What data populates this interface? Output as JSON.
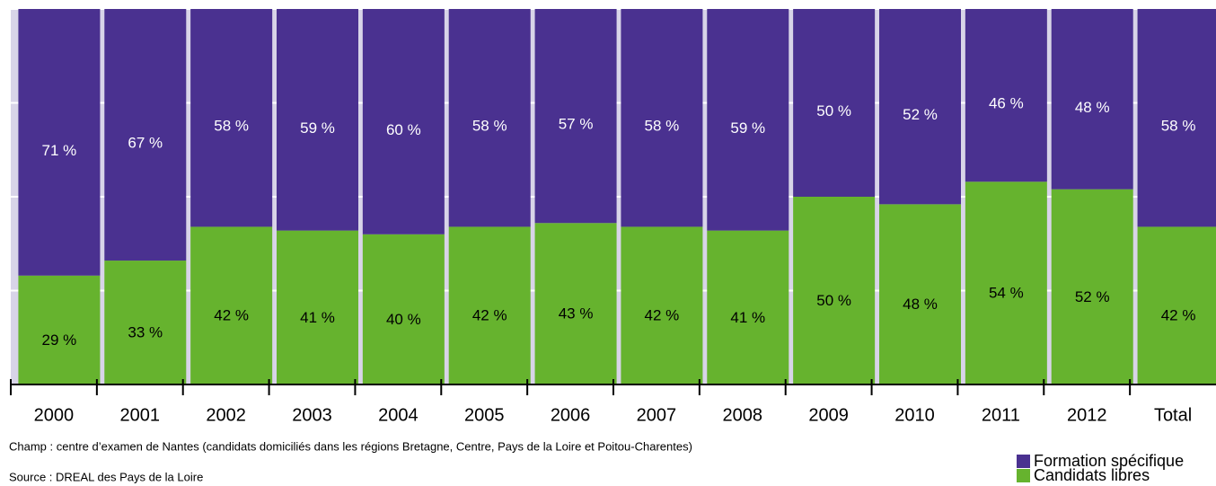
{
  "chart_data": {
    "type": "stacked-bar",
    "categories": [
      "2000",
      "2001",
      "2002",
      "2003",
      "2004",
      "2005",
      "2006",
      "2007",
      "2008",
      "2009",
      "2010",
      "2011",
      "2012",
      "Total"
    ],
    "series": [
      {
        "name": "Formation spécifique",
        "color": "#4a3190",
        "values": [
          71,
          67,
          58,
          59,
          60,
          58,
          57,
          58,
          59,
          50,
          52,
          46,
          48,
          58
        ],
        "value_labels": [
          "71 %",
          "67 %",
          "58 %",
          "59 %",
          "60 %",
          "58 %",
          "57 %",
          "58 %",
          "59 %",
          "50 %",
          "52 %",
          "46 %",
          "48 %",
          "58 %"
        ]
      },
      {
        "name": "Candidats libres",
        "color": "#66b32e",
        "values": [
          29,
          33,
          42,
          41,
          40,
          42,
          43,
          42,
          41,
          50,
          48,
          54,
          52,
          42
        ],
        "value_labels": [
          "29 %",
          "33 %",
          "42 %",
          "41 %",
          "40 %",
          "42 %",
          "43 %",
          "42 %",
          "41 %",
          "50 %",
          "48 %",
          "54 %",
          "52 %",
          "42 %"
        ]
      }
    ],
    "ylim": [
      0,
      100
    ],
    "yticks": [
      0,
      25,
      50,
      75,
      100
    ],
    "grid": true,
    "notes": [
      "Champ : centre d’examen de Nantes (candidats domiciliés dans les régions Bretagne, Centre, Pays de la Loire et Poitou-Charentes)",
      "Source : DREAL des Pays de la Loire"
    ]
  }
}
